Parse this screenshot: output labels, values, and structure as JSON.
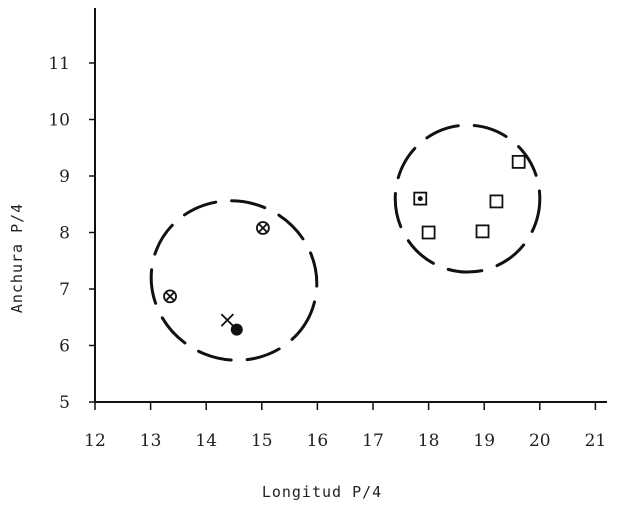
{
  "chart_data": {
    "type": "scatter",
    "title": "",
    "xlabel": "Longitud P/4",
    "ylabel": "Anchura P/4",
    "xlim": [
      12,
      21.5
    ],
    "ylim": [
      5,
      12
    ],
    "x_ticks": [
      "12",
      "13",
      "14",
      "15",
      "16",
      "17",
      "18",
      "19",
      "20",
      "21"
    ],
    "y_ticks": [
      "5",
      "6",
      "7",
      "8",
      "9",
      "10",
      "11"
    ],
    "grid": false,
    "legend": "none",
    "series": [
      {
        "marker": "circled-x",
        "points": [
          {
            "x": 13.35,
            "y": 6.87
          },
          {
            "x": 15.02,
            "y": 8.08
          }
        ]
      },
      {
        "marker": "filled-circle",
        "points": [
          {
            "x": 14.55,
            "y": 6.28
          }
        ]
      },
      {
        "marker": "cross",
        "points": [
          {
            "x": 14.38,
            "y": 6.45
          }
        ]
      },
      {
        "marker": "square",
        "points": [
          {
            "x": 18.0,
            "y": 8.0
          },
          {
            "x": 18.97,
            "y": 8.02
          },
          {
            "x": 19.22,
            "y": 8.55
          },
          {
            "x": 19.62,
            "y": 9.25
          }
        ]
      },
      {
        "marker": "dotted-square",
        "points": [
          {
            "x": 17.85,
            "y": 8.6
          }
        ]
      }
    ],
    "clusters": [
      {
        "style": "dashed-ellipse",
        "center": {
          "x": 14.5,
          "y": 7.15
        },
        "rx": 1.5,
        "ry": 1.4,
        "rotation_deg": 22
      },
      {
        "style": "dashed-ellipse",
        "center": {
          "x": 18.7,
          "y": 8.6
        },
        "rx": 1.3,
        "ry": 1.3,
        "rotation_deg": 0
      }
    ]
  }
}
